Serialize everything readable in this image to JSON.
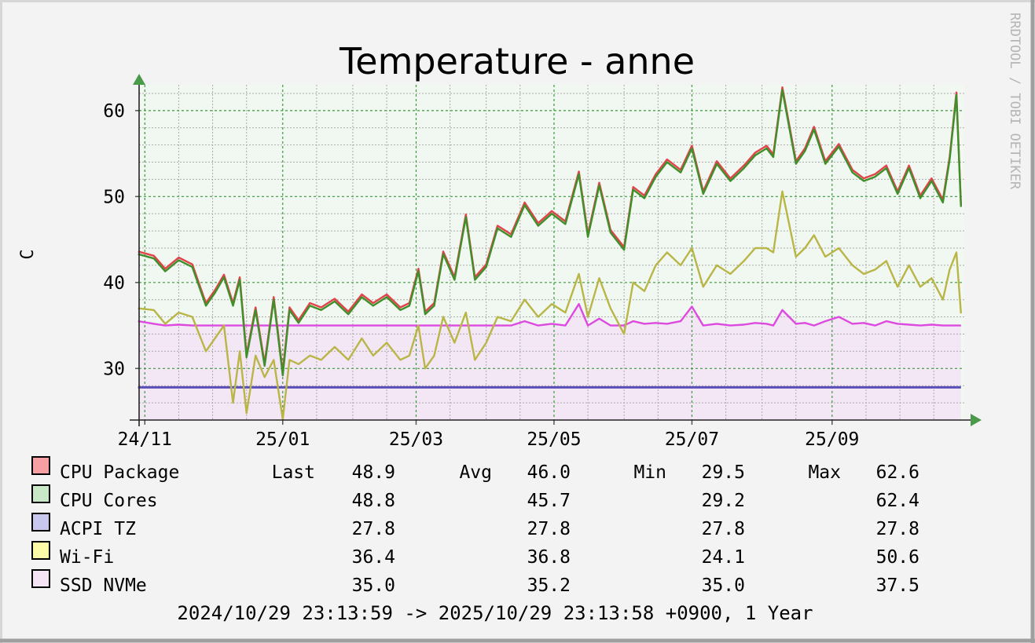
{
  "watermark": "RRDTOOL / TOBI OETIKER",
  "colors": {
    "cpu_package": "#e0444a",
    "cpu_cores": "#3f8f2b",
    "acpi_tz": "#5a4fb8",
    "wifi": "#b9b547",
    "ssd_nvme": "#dd4ae0",
    "plot_background": "#f1f8f1",
    "lower_area": "#f3e7f5",
    "grid_major": "#3a9a3a",
    "axis_arrow": "#4a9a4a"
  },
  "chart_data": {
    "type": "line",
    "title": "Temperature - anne",
    "ylabel": "C",
    "xlabel": "",
    "ylim": [
      24.0,
      63.0
    ],
    "yticks": [
      30,
      40,
      50,
      60
    ],
    "ytick_labels": [
      "30",
      "40",
      "50",
      "60"
    ],
    "x_range": [
      "2024-10-29",
      "2025-10-29"
    ],
    "xticks": [
      "2024-11-01",
      "2025-01-01",
      "2025-03-01",
      "2025-05-01",
      "2025-07-01",
      "2025-09-01"
    ],
    "xtick_labels": [
      "24/11",
      "25/01",
      "25/03",
      "25/05",
      "25/07",
      "25/09"
    ],
    "grid": true,
    "x": [
      "2024-10-29",
      "2024-11-05",
      "2024-11-10",
      "2024-11-16",
      "2024-11-22",
      "2024-11-28",
      "2024-12-02",
      "2024-12-06",
      "2024-12-10",
      "2024-12-13",
      "2024-12-16",
      "2024-12-20",
      "2024-12-24",
      "2024-12-28",
      "2025-01-01",
      "2025-01-04",
      "2025-01-08",
      "2025-01-13",
      "2025-01-18",
      "2025-01-24",
      "2025-01-30",
      "2025-02-05",
      "2025-02-10",
      "2025-02-16",
      "2025-02-22",
      "2025-02-26",
      "2025-03-02",
      "2025-03-05",
      "2025-03-09",
      "2025-03-13",
      "2025-03-18",
      "2025-03-23",
      "2025-03-27",
      "2025-04-01",
      "2025-04-06",
      "2025-04-12",
      "2025-04-18",
      "2025-04-24",
      "2025-04-30",
      "2025-05-06",
      "2025-05-12",
      "2025-05-16",
      "2025-05-21",
      "2025-05-26",
      "2025-06-01",
      "2025-06-05",
      "2025-06-10",
      "2025-06-15",
      "2025-06-20",
      "2025-06-26",
      "2025-07-01",
      "2025-07-06",
      "2025-07-12",
      "2025-07-18",
      "2025-07-24",
      "2025-07-29",
      "2025-08-03",
      "2025-08-06",
      "2025-08-10",
      "2025-08-16",
      "2025-08-20",
      "2025-08-24",
      "2025-08-29",
      "2025-09-04",
      "2025-09-10",
      "2025-09-15",
      "2025-09-20",
      "2025-09-25",
      "2025-09-30",
      "2025-10-05",
      "2025-10-10",
      "2025-10-15",
      "2025-10-20",
      "2025-10-23",
      "2025-10-26",
      "2025-10-28"
    ],
    "series": [
      {
        "name": "CPU Package",
        "color_key": "cpu_package",
        "values": [
          43.5,
          43.0,
          41.5,
          42.8,
          42.0,
          37.5,
          39.0,
          40.8,
          37.5,
          40.5,
          31.5,
          37.0,
          30.5,
          38.2,
          29.5,
          37.0,
          35.5,
          37.5,
          37.0,
          38.0,
          36.5,
          38.5,
          37.5,
          38.5,
          37.0,
          37.5,
          41.5,
          36.5,
          37.5,
          43.5,
          40.5,
          47.8,
          40.5,
          42.0,
          46.5,
          45.5,
          49.2,
          46.8,
          48.2,
          47.0,
          52.8,
          45.5,
          51.5,
          46.0,
          44.0,
          51.0,
          50.0,
          52.5,
          54.2,
          53.0,
          55.8,
          50.5,
          54.0,
          52.0,
          53.5,
          55.0,
          55.8,
          54.8,
          62.6,
          54.0,
          55.5,
          58.0,
          54.0,
          56.0,
          53.0,
          52.0,
          52.5,
          53.5,
          50.5,
          53.5,
          50.0,
          52.0,
          49.5,
          54.5,
          62.0,
          48.9
        ]
      },
      {
        "name": "CPU Cores",
        "color_key": "cpu_cores",
        "values": [
          43.3,
          42.8,
          41.3,
          42.6,
          41.8,
          37.3,
          38.8,
          40.6,
          37.3,
          40.3,
          31.3,
          36.8,
          30.3,
          38.0,
          29.2,
          36.8,
          35.3,
          37.3,
          36.8,
          37.8,
          36.3,
          38.3,
          37.3,
          38.3,
          36.8,
          37.3,
          41.3,
          36.3,
          37.3,
          43.3,
          40.3,
          47.6,
          40.3,
          41.8,
          46.3,
          45.3,
          49.0,
          46.6,
          48.0,
          46.8,
          52.6,
          45.3,
          51.3,
          45.8,
          43.8,
          50.8,
          49.8,
          52.3,
          54.0,
          52.8,
          55.6,
          50.3,
          53.8,
          51.8,
          53.3,
          54.8,
          55.6,
          54.6,
          62.4,
          53.8,
          55.3,
          57.8,
          53.8,
          55.8,
          52.8,
          51.8,
          52.3,
          53.3,
          50.3,
          53.3,
          49.8,
          51.8,
          49.3,
          54.3,
          61.8,
          48.8
        ]
      },
      {
        "name": "ACPI TZ",
        "color_key": "acpi_tz",
        "values": [
          27.8,
          27.8,
          27.8,
          27.8,
          27.8,
          27.8,
          27.8,
          27.8,
          27.8,
          27.8,
          27.8,
          27.8,
          27.8,
          27.8,
          27.8,
          27.8,
          27.8,
          27.8,
          27.8,
          27.8,
          27.8,
          27.8,
          27.8,
          27.8,
          27.8,
          27.8,
          27.8,
          27.8,
          27.8,
          27.8,
          27.8,
          27.8,
          27.8,
          27.8,
          27.8,
          27.8,
          27.8,
          27.8,
          27.8,
          27.8,
          27.8,
          27.8,
          27.8,
          27.8,
          27.8,
          27.8,
          27.8,
          27.8,
          27.8,
          27.8,
          27.8,
          27.8,
          27.8,
          27.8,
          27.8,
          27.8,
          27.8,
          27.8,
          27.8,
          27.8,
          27.8,
          27.8,
          27.8,
          27.8,
          27.8,
          27.8,
          27.8,
          27.8,
          27.8,
          27.8,
          27.8,
          27.8,
          27.8,
          27.8,
          27.8,
          27.8
        ]
      },
      {
        "name": "Wi-Fi",
        "color_key": "wifi",
        "values": [
          37.0,
          36.8,
          35.2,
          36.5,
          36.0,
          32.0,
          33.5,
          35.0,
          26.0,
          32.0,
          24.8,
          31.5,
          29.0,
          31.0,
          24.1,
          31.0,
          30.5,
          31.5,
          31.0,
          32.5,
          31.0,
          33.5,
          31.5,
          33.0,
          31.0,
          31.5,
          35.0,
          30.0,
          31.5,
          36.0,
          33.0,
          36.5,
          31.0,
          33.0,
          36.0,
          35.5,
          38.0,
          36.0,
          37.5,
          36.5,
          41.0,
          36.0,
          40.5,
          37.0,
          34.0,
          40.0,
          39.0,
          42.0,
          43.5,
          42.0,
          44.0,
          39.5,
          42.0,
          41.0,
          42.5,
          44.0,
          44.0,
          43.5,
          50.6,
          43.0,
          44.0,
          45.5,
          43.0,
          44.0,
          42.0,
          41.0,
          41.5,
          42.5,
          39.5,
          42.0,
          39.5,
          40.5,
          38.0,
          41.5,
          43.5,
          36.4
        ]
      },
      {
        "name": "SSD NVMe",
        "color_key": "ssd_nvme",
        "values": [
          35.5,
          35.2,
          35.0,
          35.1,
          35.0,
          35.0,
          35.0,
          35.0,
          35.0,
          35.0,
          35.0,
          35.0,
          35.0,
          35.0,
          35.0,
          35.0,
          35.0,
          35.0,
          35.0,
          35.0,
          35.0,
          35.0,
          35.0,
          35.0,
          35.0,
          35.0,
          35.0,
          35.0,
          35.0,
          35.0,
          35.0,
          35.0,
          35.0,
          35.0,
          35.0,
          35.0,
          35.5,
          35.0,
          35.2,
          35.0,
          37.5,
          35.0,
          35.8,
          35.0,
          35.0,
          35.5,
          35.2,
          35.3,
          35.2,
          35.5,
          37.2,
          35.0,
          35.2,
          35.0,
          35.1,
          35.3,
          35.2,
          35.0,
          36.8,
          35.2,
          35.3,
          35.0,
          35.5,
          36.0,
          35.2,
          35.3,
          35.0,
          35.5,
          35.2,
          35.1,
          35.0,
          35.1,
          35.0,
          35.0,
          35.0,
          35.0
        ]
      }
    ]
  },
  "legend": {
    "headers": {
      "last": "Last",
      "avg": "Avg",
      "min": "Min",
      "max": "Max"
    },
    "rows": [
      {
        "label": "CPU Package",
        "color_key": "cpu_package",
        "swatch": "#f7a0a4",
        "last": "48.9",
        "avg": "46.0",
        "min": "29.5",
        "max": "62.6"
      },
      {
        "label": "CPU Cores",
        "color_key": "cpu_cores",
        "swatch": "#c8e8c8",
        "last": "48.8",
        "avg": "45.7",
        "min": "29.2",
        "max": "62.4"
      },
      {
        "label": "ACPI TZ",
        "color_key": "acpi_tz",
        "swatch": "#c8c8ef",
        "last": "27.8",
        "avg": "27.8",
        "min": "27.8",
        "max": "27.8"
      },
      {
        "label": "Wi-Fi",
        "color_key": "wifi",
        "swatch": "#fbfba8",
        "last": "36.4",
        "avg": "36.8",
        "min": "24.1",
        "max": "50.6"
      },
      {
        "label": "SSD NVMe",
        "color_key": "ssd_nvme",
        "swatch": "#f4e4f4",
        "last": "35.0",
        "avg": "35.2",
        "min": "35.0",
        "max": "37.5"
      }
    ]
  },
  "footer": {
    "range": "2024/10/29 23:13:59 -> 2025/10/29 23:13:58 +0900, 1 Year"
  }
}
